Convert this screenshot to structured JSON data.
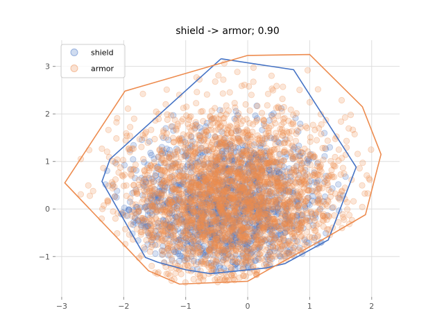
{
  "chart_data": {
    "type": "scatter",
    "title": "shield -> armor; 0.90",
    "xlabel": "",
    "ylabel": "",
    "xlim": [
      -3.1,
      2.45
    ],
    "ylim": [
      -1.85,
      3.55
    ],
    "xticks": [
      -3,
      -2,
      -1,
      0,
      1,
      2
    ],
    "yticks": [
      -1,
      0,
      1,
      2,
      3
    ],
    "grid": true,
    "legend_position": "top-left",
    "series": [
      {
        "name": "shield",
        "color": "#4472C4",
        "center": [
          -0.35,
          0.0
        ],
        "spread": [
          0.82,
          0.82
        ],
        "count": 1400,
        "hull": [
          [
            -0.43,
            3.16
          ],
          [
            0.74,
            2.93
          ],
          [
            1.75,
            0.88
          ],
          [
            1.3,
            -0.65
          ],
          [
            0.6,
            -1.15
          ],
          [
            0.3,
            -1.24
          ],
          [
            -0.6,
            -1.36
          ],
          [
            -1.0,
            -1.28
          ],
          [
            -1.45,
            -1.12
          ],
          [
            -1.65,
            -1.02
          ],
          [
            -2.35,
            0.58
          ],
          [
            -2.22,
            1.05
          ],
          [
            -0.43,
            3.16
          ]
        ]
      },
      {
        "name": "armor",
        "color": "#ED8B4E",
        "center": [
          -0.25,
          0.15
        ],
        "spread": [
          0.92,
          0.95
        ],
        "count": 2600,
        "hull": [
          [
            0.0,
            3.23
          ],
          [
            1.0,
            3.25
          ],
          [
            1.85,
            2.15
          ],
          [
            2.15,
            1.15
          ],
          [
            1.9,
            -0.12
          ],
          [
            1.2,
            -0.65
          ],
          [
            0.3,
            -1.3
          ],
          [
            0.0,
            -1.52
          ],
          [
            -1.1,
            -1.58
          ],
          [
            -1.6,
            -1.3
          ],
          [
            -2.95,
            0.55
          ],
          [
            -1.98,
            2.48
          ],
          [
            0.0,
            3.23
          ]
        ]
      }
    ]
  }
}
